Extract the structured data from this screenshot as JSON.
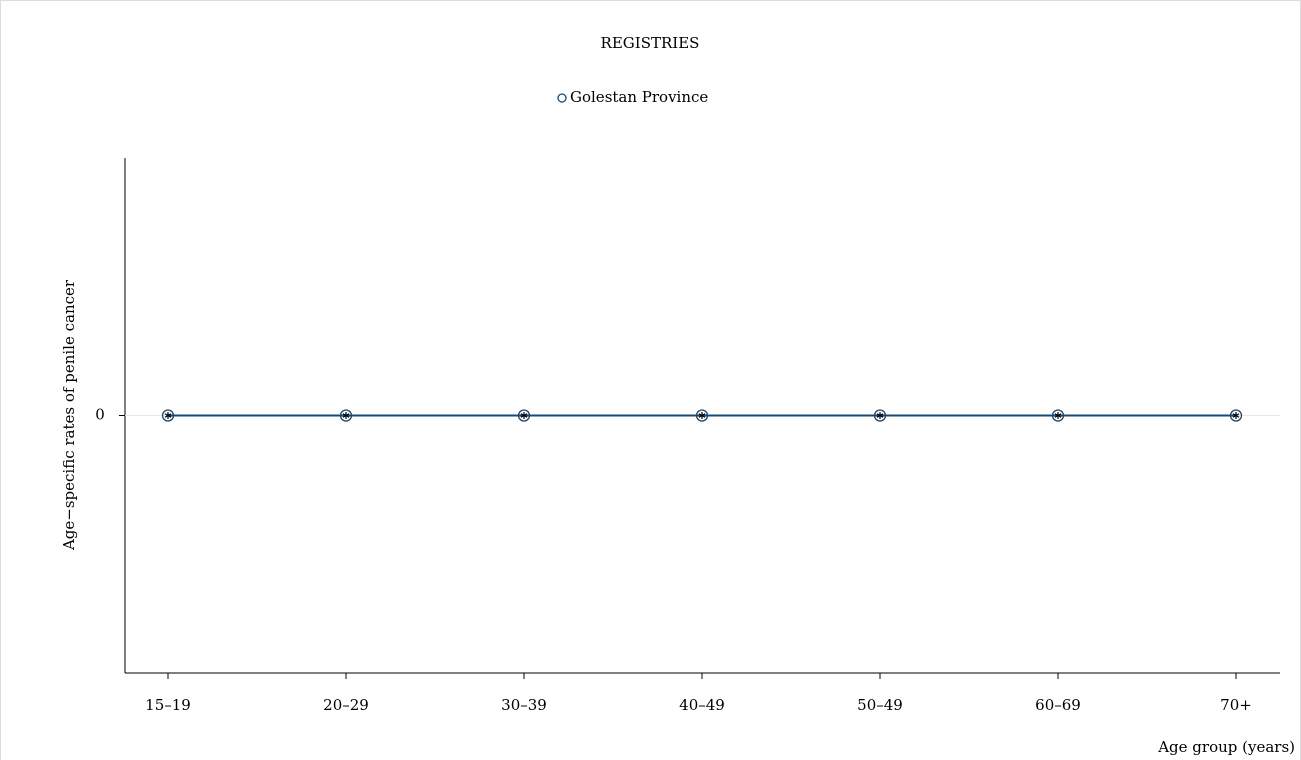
{
  "chart_data": {
    "type": "line",
    "title": "REGISTRIES",
    "x_label": "Age group (years)",
    "y_label": "Age−specific rates of penile cancer",
    "categories": [
      "15–19",
      "20–29",
      "30–39",
      "40–49",
      "50–49",
      "60–69",
      "70+"
    ],
    "series": [
      {
        "name": "Golestan Province",
        "color": "#1a476f",
        "values": [
          0,
          0,
          0,
          0,
          0,
          0,
          0
        ]
      }
    ],
    "ylim": [
      -1,
      1
    ],
    "yticks": [
      0
    ],
    "grid": true
  }
}
